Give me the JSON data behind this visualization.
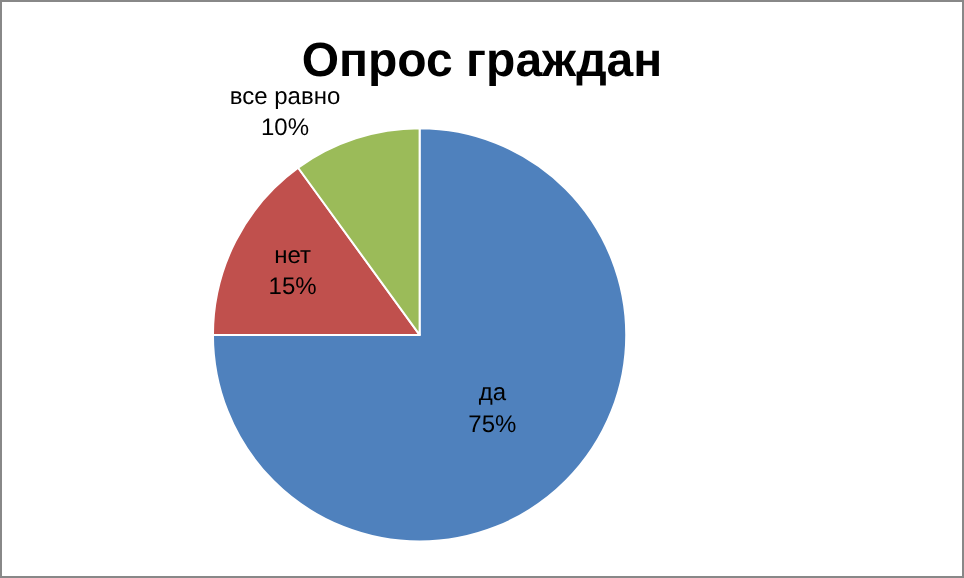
{
  "chart_data": {
    "type": "pie",
    "title": "Опрос граждан",
    "categories": [
      "да",
      "нет",
      "все равно"
    ],
    "values": [
      75,
      15,
      10
    ],
    "value_labels": [
      "75%",
      "15%",
      "10%"
    ],
    "colors": [
      "#4f81bd",
      "#c0504d",
      "#9bbb59"
    ],
    "legend": false
  }
}
